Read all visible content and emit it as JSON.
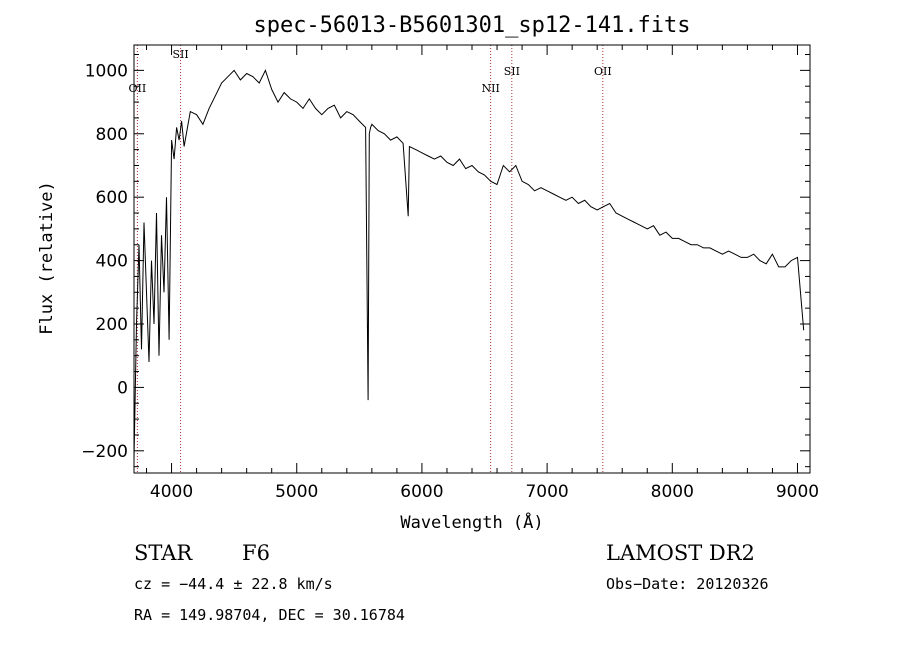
{
  "chart_data": {
    "type": "line",
    "title": "spec-56013-B5601301_sp12-141.fits",
    "xlabel": "Wavelength (Å)",
    "ylabel": "Flux (relative)",
    "xlim": [
      3700,
      9100
    ],
    "ylim": [
      -270,
      1080
    ],
    "x_ticks": [
      4000,
      5000,
      6000,
      7000,
      8000,
      9000
    ],
    "y_ticks": [
      -200,
      0,
      200,
      400,
      600,
      800,
      1000
    ],
    "grid": false,
    "series": [
      {
        "x": [
          3700,
          3720,
          3740,
          3760,
          3780,
          3800,
          3820,
          3840,
          3860,
          3880,
          3900,
          3920,
          3940,
          3960,
          3980,
          4000,
          4020,
          4040,
          4060,
          4080,
          4100,
          4150,
          4200,
          4250,
          4300,
          4350,
          4400,
          4450,
          4500,
          4550,
          4600,
          4650,
          4700,
          4750,
          4800,
          4850,
          4900,
          4950,
          5000,
          5050,
          5100,
          5150,
          5200,
          5250,
          5300,
          5350,
          5400,
          5450,
          5500,
          5550,
          5570,
          5580,
          5590,
          5600,
          5650,
          5700,
          5750,
          5800,
          5850,
          5890,
          5900,
          5950,
          6000,
          6050,
          6100,
          6150,
          6200,
          6250,
          6300,
          6350,
          6400,
          6450,
          6500,
          6550,
          6600,
          6650,
          6700,
          6750,
          6800,
          6850,
          6900,
          6950,
          7000,
          7050,
          7100,
          7150,
          7200,
          7250,
          7300,
          7350,
          7400,
          7450,
          7500,
          7550,
          7600,
          7650,
          7700,
          7750,
          7800,
          7850,
          7900,
          7950,
          8000,
          8050,
          8100,
          8150,
          8200,
          8250,
          8300,
          8350,
          8400,
          8450,
          8500,
          8550,
          8600,
          8650,
          8700,
          8750,
          8800,
          8850,
          8900,
          8950,
          9000,
          9050
        ],
        "y": [
          -230,
          200,
          450,
          120,
          520,
          300,
          80,
          400,
          200,
          550,
          100,
          480,
          300,
          600,
          150,
          780,
          720,
          820,
          780,
          840,
          760,
          870,
          860,
          830,
          880,
          920,
          960,
          980,
          1000,
          970,
          990,
          980,
          960,
          1000,
          940,
          900,
          930,
          910,
          900,
          880,
          910,
          880,
          860,
          880,
          890,
          850,
          870,
          860,
          840,
          820,
          -40,
          800,
          820,
          830,
          810,
          800,
          780,
          790,
          770,
          540,
          760,
          750,
          740,
          730,
          720,
          730,
          710,
          700,
          720,
          690,
          700,
          680,
          670,
          650,
          640,
          700,
          680,
          700,
          650,
          640,
          620,
          630,
          620,
          610,
          600,
          590,
          600,
          580,
          590,
          570,
          560,
          570,
          580,
          550,
          540,
          530,
          520,
          510,
          500,
          510,
          480,
          490,
          470,
          470,
          460,
          450,
          450,
          440,
          440,
          430,
          420,
          430,
          420,
          410,
          410,
          420,
          400,
          390,
          420,
          380,
          380,
          400,
          410,
          180
        ],
        "color": "#000000"
      }
    ],
    "emission_lines": [
      {
        "label": "OII",
        "x": 3727
      },
      {
        "label": "SII",
        "x": 4072
      },
      {
        "label": "NII",
        "x": 6549
      },
      {
        "label": "SII",
        "x": 6718
      },
      {
        "label": "OII",
        "x": 7445
      }
    ],
    "emission_line_color": "#b03030"
  },
  "info": {
    "object_type": "STAR",
    "spectral_class": "F6",
    "survey": "LAMOST DR2",
    "cz": "cz = −44.4 ± 22.8 km/s",
    "obs_date": "Obs−Date: 20120326",
    "coords": "RA = 149.98704, DEC =  30.16784"
  }
}
